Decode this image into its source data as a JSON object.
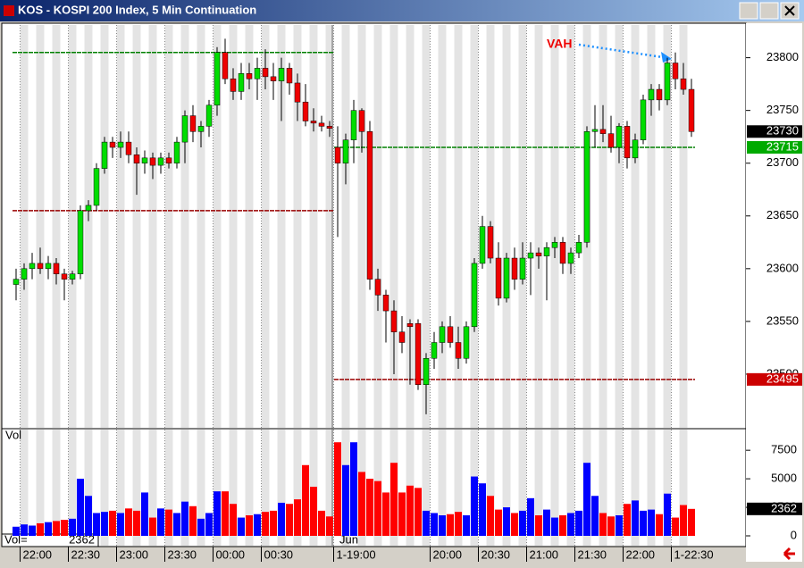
{
  "chart_data": {
    "type": "candlestick",
    "title": "KOS - KOSPI 200 Index, 5 Min Continuation",
    "open": [
      23585,
      23590,
      23600,
      23605,
      23600,
      23605,
      23595,
      23590,
      23595,
      23655,
      23660,
      23695,
      23720,
      23715,
      23720,
      23708,
      23700,
      23705,
      23698,
      23705,
      23700,
      23720,
      23745,
      23730,
      23735,
      23755,
      23805,
      23780,
      23768,
      23785,
      23780,
      23790,
      23782,
      23778,
      23790,
      23776,
      23758,
      23740,
      23738,
      23735,
      23715,
      23700,
      23722,
      23750,
      23730,
      23590,
      23575,
      23560,
      23540,
      23548,
      23548,
      23490,
      23515,
      23530,
      23545,
      23530,
      23515,
      23545,
      23605,
      23640,
      23610,
      23572,
      23610,
      23590,
      23610,
      23615,
      23612,
      23620,
      23625,
      23605,
      23615,
      23625,
      23730,
      23732,
      23728,
      23715,
      23735,
      23705,
      23722,
      23760,
      23770,
      23760,
      23795,
      23780,
      23770
    ],
    "high": [
      23600,
      23605,
      23615,
      23620,
      23612,
      23610,
      23600,
      23598,
      23660,
      23665,
      23700,
      23725,
      23725,
      23730,
      23730,
      23715,
      23712,
      23710,
      23710,
      23710,
      23725,
      23750,
      23755,
      23740,
      23760,
      23810,
      23818,
      23790,
      23795,
      23795,
      23800,
      23808,
      23795,
      23800,
      23795,
      23785,
      23775,
      23752,
      23745,
      23740,
      23735,
      23728,
      23760,
      23752,
      23740,
      23600,
      23580,
      23570,
      23555,
      23552,
      23552,
      23520,
      23540,
      23550,
      23555,
      23545,
      23550,
      23610,
      23650,
      23645,
      23625,
      23615,
      23620,
      23625,
      23625,
      23620,
      23625,
      23630,
      23630,
      23620,
      23632,
      23735,
      23755,
      23755,
      23745,
      23738,
      23740,
      23728,
      23765,
      23775,
      23775,
      23800,
      23805,
      23795,
      23780
    ],
    "low": [
      23570,
      23580,
      23590,
      23595,
      23590,
      23585,
      23570,
      23585,
      23590,
      23645,
      23655,
      23690,
      23705,
      23705,
      23700,
      23670,
      23690,
      23685,
      23690,
      23695,
      23695,
      23700,
      23720,
      23715,
      23725,
      23745,
      23775,
      23760,
      23760,
      23770,
      23760,
      23770,
      23760,
      23740,
      23765,
      23740,
      23735,
      23730,
      23730,
      23725,
      23630,
      23680,
      23700,
      23710,
      23580,
      23560,
      23530,
      23500,
      23520,
      23490,
      23485,
      23462,
      23505,
      23520,
      23525,
      23505,
      23510,
      23540,
      23600,
      23605,
      23565,
      23568,
      23580,
      23585,
      23575,
      23600,
      23570,
      23610,
      23595,
      23595,
      23610,
      23620,
      23715,
      23720,
      23710,
      23700,
      23695,
      23700,
      23718,
      23745,
      23750,
      23755,
      23770,
      23765,
      23725
    ],
    "close": [
      23590,
      23600,
      23605,
      23600,
      23605,
      23595,
      23590,
      23595,
      23655,
      23660,
      23695,
      23720,
      23715,
      23720,
      23708,
      23700,
      23705,
      23698,
      23705,
      23700,
      23720,
      23745,
      23730,
      23735,
      23755,
      23805,
      23780,
      23768,
      23785,
      23780,
      23790,
      23782,
      23778,
      23790,
      23776,
      23758,
      23740,
      23738,
      23735,
      23733,
      23700,
      23722,
      23750,
      23730,
      23590,
      23575,
      23560,
      23540,
      23530,
      23545,
      23490,
      23515,
      23530,
      23545,
      23530,
      23515,
      23545,
      23605,
      23640,
      23610,
      23572,
      23610,
      23590,
      23610,
      23615,
      23612,
      23620,
      23625,
      23605,
      23615,
      23625,
      23730,
      23732,
      23728,
      23715,
      23735,
      23705,
      23722,
      23760,
      23770,
      23760,
      23795,
      23780,
      23770,
      23730
    ],
    "volume": [
      800,
      1000,
      900,
      1100,
      1200,
      1300,
      1400,
      1500,
      5000,
      3500,
      2000,
      2100,
      2200,
      2000,
      2400,
      2200,
      3800,
      1600,
      2400,
      2300,
      2000,
      3000,
      2600,
      1500,
      2000,
      3900,
      3900,
      2800,
      1600,
      1800,
      1900,
      2100,
      2200,
      2900,
      2800,
      3200,
      6200,
      4300,
      2200,
      1700,
      8200,
      6200,
      8200,
      5600,
      5000,
      4800,
      3800,
      6400,
      3800,
      4400,
      4200,
      2200,
      2000,
      1800,
      1900,
      2100,
      1800,
      5200,
      4600,
      3500,
      2300,
      2500,
      2000,
      2200,
      3300,
      1800,
      2300,
      1600,
      1800,
      2000,
      2200,
      6400,
      3500,
      2000,
      1700,
      1800,
      2800,
      3100,
      2200,
      2300,
      1900,
      3700,
      1600,
      2700,
      2362
    ],
    "up_color": "#00dd00",
    "down_color": "#ee0000",
    "vol_up_color": "#0000ff",
    "vol_down_color": "#ff0000",
    "ylim": [
      23450,
      23831
    ],
    "yticks": [
      23500,
      23550,
      23600,
      23650,
      23700,
      23750,
      23800
    ],
    "vol_label": "Vol",
    "vol_ylim": [
      0,
      9000
    ],
    "vol_yticks": [
      0,
      2500,
      5000,
      7500
    ],
    "vol_readout_label": "Vol=",
    "month_label": "Jun",
    "xticks": [
      {
        "value": 1,
        "label": "22:00"
      },
      {
        "value": 7,
        "label": "22:30"
      },
      {
        "value": 13,
        "label": "23:00"
      },
      {
        "value": 19,
        "label": "23:30"
      },
      {
        "value": 25,
        "label": "00:00"
      },
      {
        "value": 31,
        "label": "00:30"
      },
      {
        "value": 40,
        "label": "1-19:00"
      },
      {
        "value": 52,
        "label": "20:00"
      },
      {
        "value": 58,
        "label": "20:30"
      },
      {
        "value": 64,
        "label": "21:00"
      },
      {
        "value": 70,
        "label": "21:30"
      },
      {
        "value": 76,
        "label": "22:00"
      },
      {
        "value": 82,
        "label": "1-22:30"
      }
    ],
    "levels": [
      {
        "value": 23805,
        "from": 0,
        "to": 39,
        "color": "#008000"
      },
      {
        "value": 23655,
        "from": 0,
        "to": 39,
        "color": "#990000"
      },
      {
        "value": 23715,
        "from": 40,
        "to": 84,
        "color": "#008000"
      },
      {
        "value": 23495,
        "from": 40,
        "to": 84,
        "color": "#990000"
      }
    ],
    "price_labels": [
      {
        "value": 23730,
        "color": "#000000"
      },
      {
        "value": 23715,
        "color": "#00aa00"
      },
      {
        "value": 23495,
        "color": "#cc0000"
      }
    ],
    "annotation": "VAH"
  }
}
